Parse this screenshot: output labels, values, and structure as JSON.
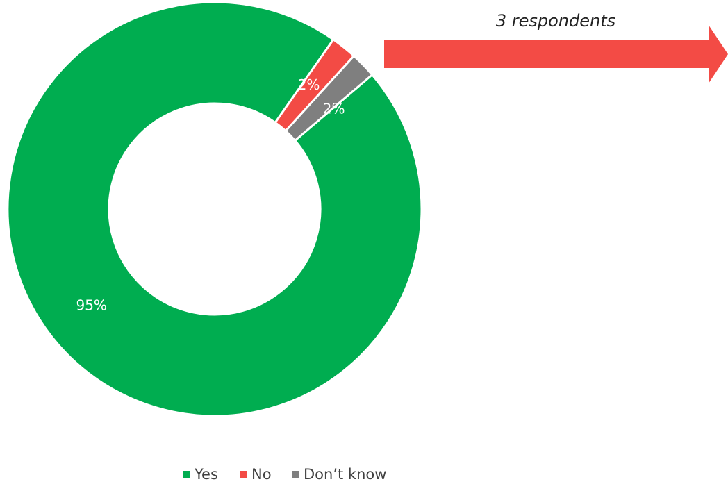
{
  "chart_data": {
    "type": "pie",
    "variant": "donut",
    "categories": [
      "Yes",
      "No",
      "Don’t know"
    ],
    "values": [
      95,
      2,
      2
    ],
    "value_labels": [
      "95%",
      "2%",
      "2%"
    ],
    "colors": [
      "#00AD50",
      "#F34B45",
      "#7F7F7F"
    ],
    "legend": {
      "position": "bottom",
      "entries": [
        "Yes",
        "No",
        "Don’t know"
      ]
    },
    "annotation": {
      "text": "3 respondents",
      "arrow_color": "#F34B45",
      "target": "No"
    }
  }
}
